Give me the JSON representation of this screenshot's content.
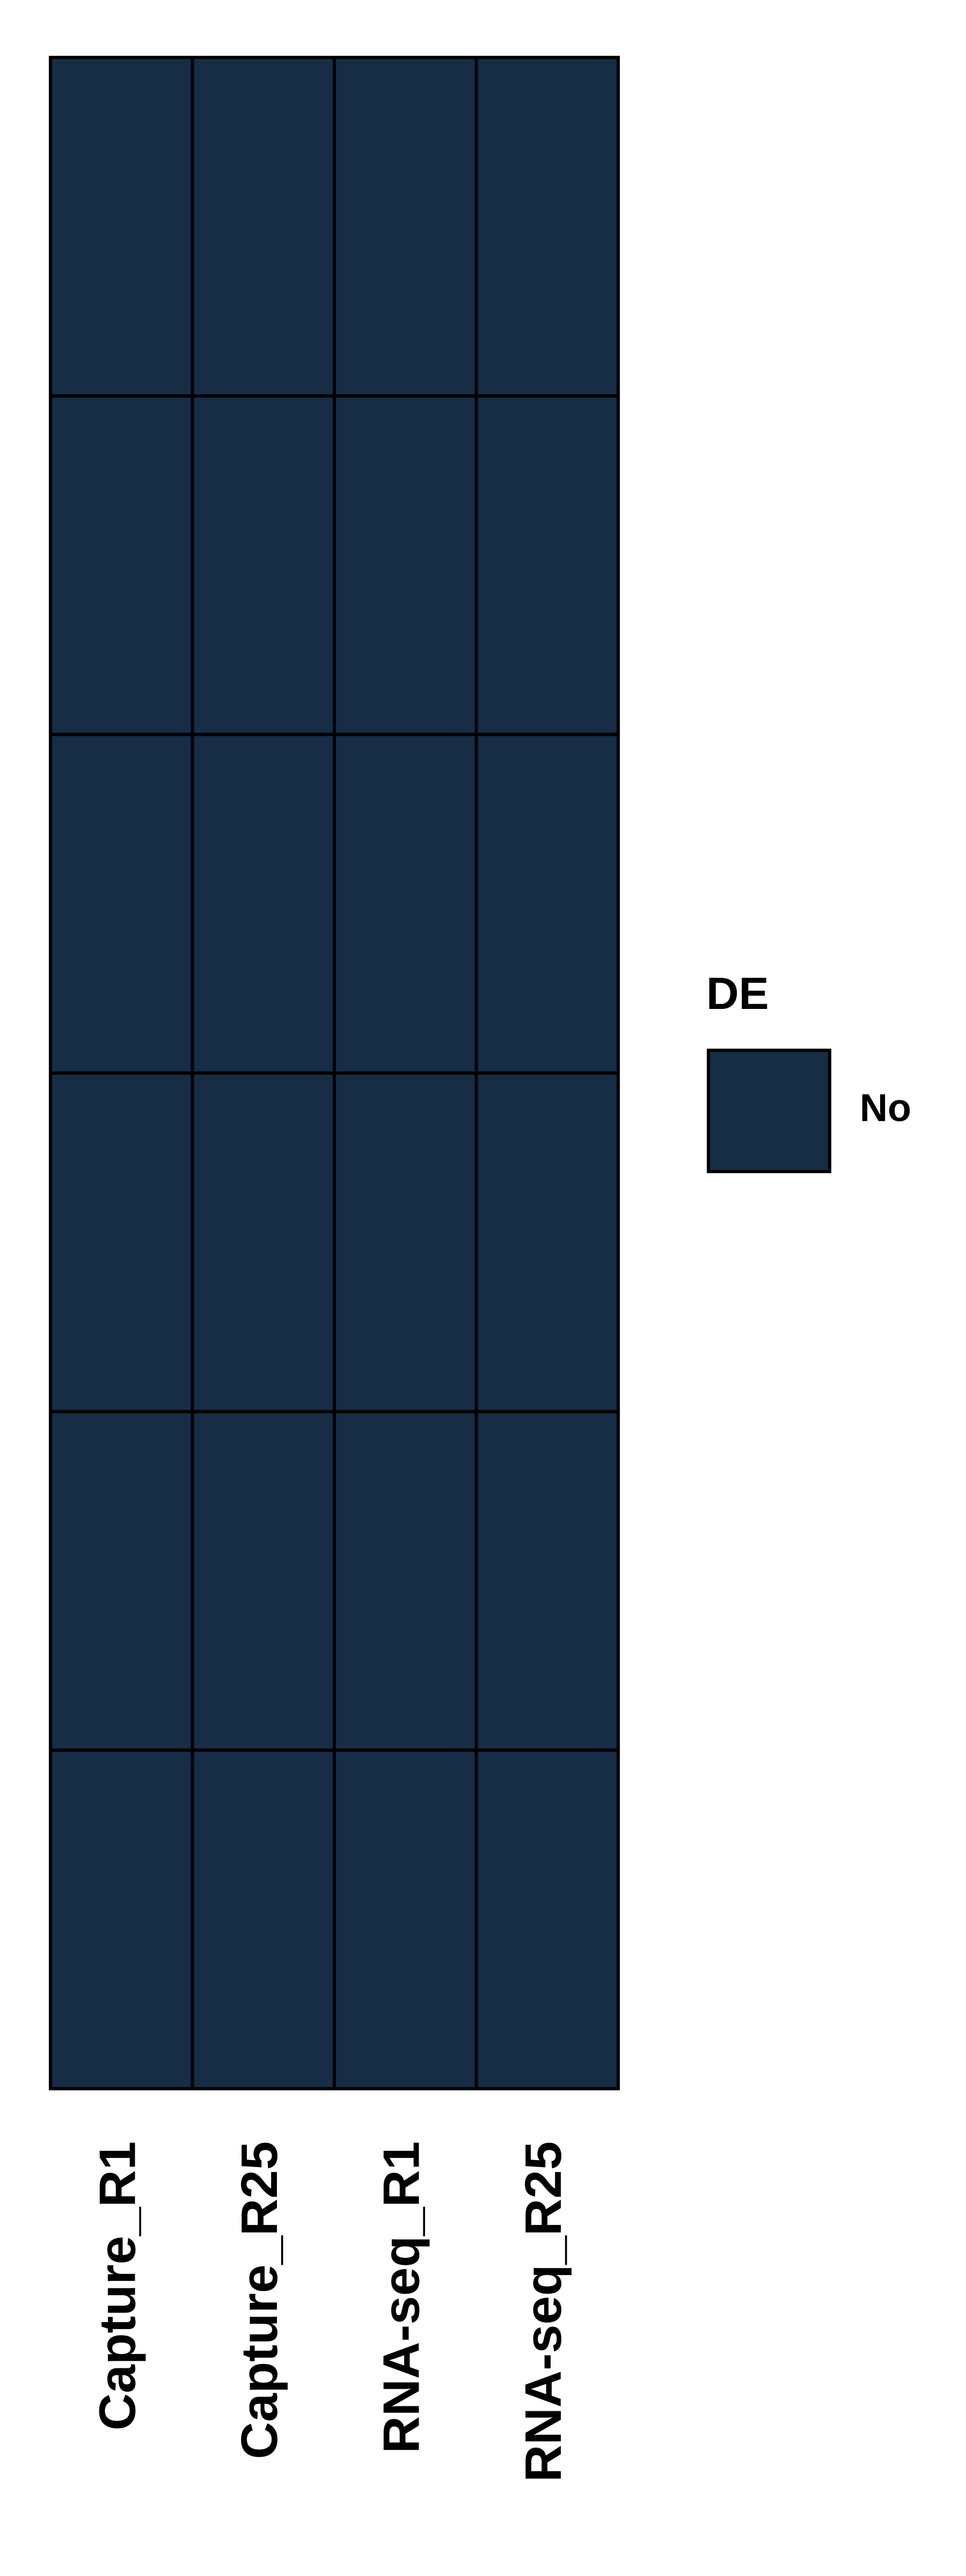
{
  "chart_data": {
    "type": "heatmap",
    "columns": [
      "Capture_R1",
      "Capture_R25",
      "RNA-seq_R1",
      "RNA-seq_R25"
    ],
    "rows": 6,
    "values": [
      [
        "No",
        "No",
        "No",
        "No"
      ],
      [
        "No",
        "No",
        "No",
        "No"
      ],
      [
        "No",
        "No",
        "No",
        "No"
      ],
      [
        "No",
        "No",
        "No",
        "No"
      ],
      [
        "No",
        "No",
        "No",
        "No"
      ],
      [
        "No",
        "No",
        "No",
        "No"
      ]
    ],
    "legend": {
      "title": "DE",
      "placement": "right",
      "items": [
        {
          "label": "No",
          "color": "#172c45"
        }
      ]
    },
    "grid": true,
    "cell_border_color": "#000000"
  }
}
